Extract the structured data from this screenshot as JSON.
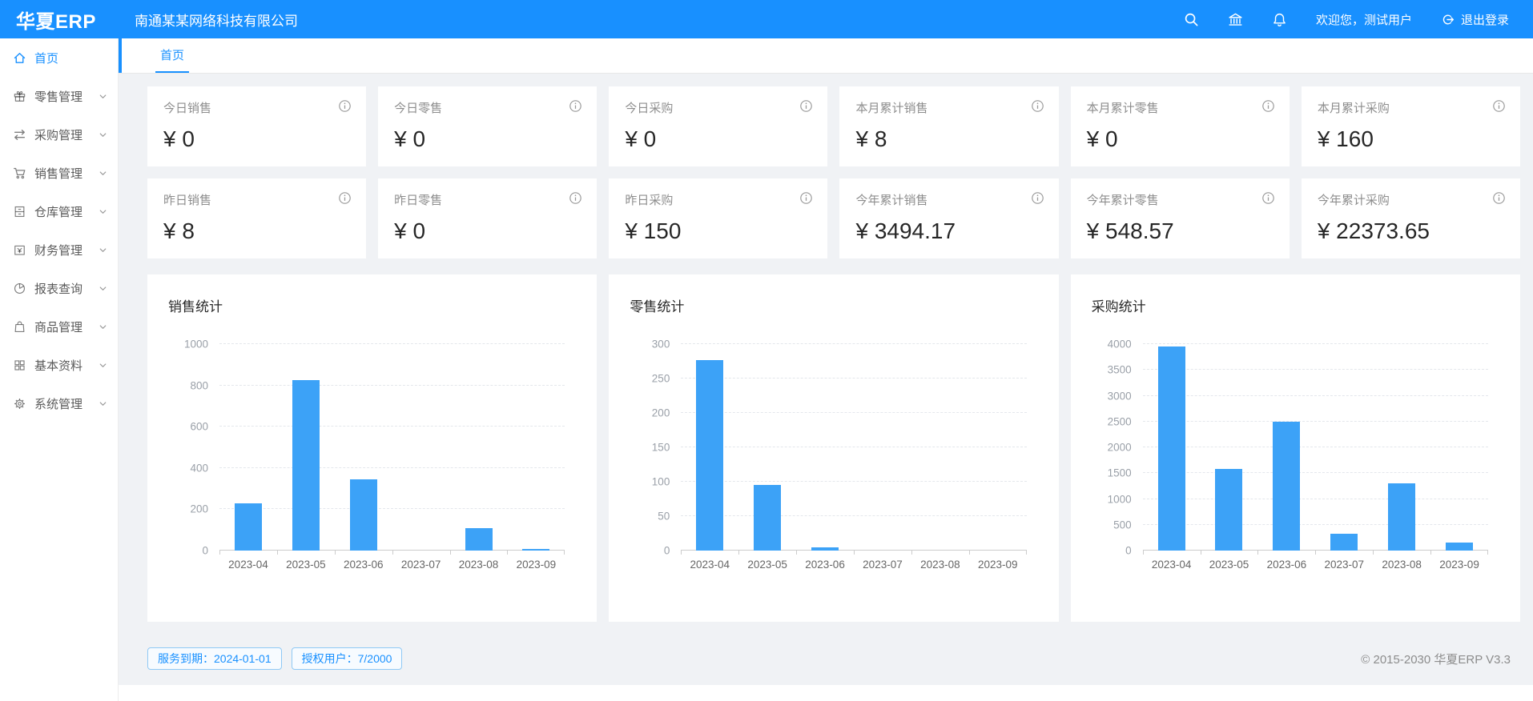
{
  "colors": {
    "primary": "#1890ff",
    "bar": "#3ca2f7",
    "page_bg": "#f0f2f5"
  },
  "header": {
    "logo": "华夏ERP",
    "company": "南通某某网络科技有限公司",
    "icons": [
      "search",
      "bank",
      "bell"
    ],
    "welcome": "欢迎您，测试用户",
    "logout_label": "退出登录"
  },
  "tabs": [
    {
      "label": "首页",
      "active": true
    }
  ],
  "sidebar": {
    "items": [
      {
        "label": "首页",
        "icon": "home",
        "active": true,
        "expandable": false
      },
      {
        "label": "零售管理",
        "icon": "gift",
        "active": false,
        "expandable": true
      },
      {
        "label": "采购管理",
        "icon": "swap",
        "active": false,
        "expandable": true
      },
      {
        "label": "销售管理",
        "icon": "cart",
        "active": false,
        "expandable": true
      },
      {
        "label": "仓库管理",
        "icon": "warehouse",
        "active": false,
        "expandable": true
      },
      {
        "label": "财务管理",
        "icon": "wallet",
        "active": false,
        "expandable": true
      },
      {
        "label": "报表查询",
        "icon": "pie",
        "active": false,
        "expandable": true
      },
      {
        "label": "商品管理",
        "icon": "bag",
        "active": false,
        "expandable": true
      },
      {
        "label": "基本资料",
        "icon": "grid",
        "active": false,
        "expandable": true
      },
      {
        "label": "系统管理",
        "icon": "gear",
        "active": false,
        "expandable": true
      }
    ]
  },
  "stats": {
    "rows": [
      [
        {
          "label": "今日销售",
          "value": "¥ 0"
        },
        {
          "label": "今日零售",
          "value": "¥ 0"
        },
        {
          "label": "今日采购",
          "value": "¥ 0"
        },
        {
          "label": "本月累计销售",
          "value": "¥ 8"
        },
        {
          "label": "本月累计零售",
          "value": "¥ 0"
        },
        {
          "label": "本月累计采购",
          "value": "¥ 160"
        }
      ],
      [
        {
          "label": "昨日销售",
          "value": "¥ 8"
        },
        {
          "label": "昨日零售",
          "value": "¥ 0"
        },
        {
          "label": "昨日采购",
          "value": "¥ 150"
        },
        {
          "label": "今年累计销售",
          "value": "¥ 3494.17"
        },
        {
          "label": "今年累计零售",
          "value": "¥ 548.57"
        },
        {
          "label": "今年累计采购",
          "value": "¥ 22373.65"
        }
      ]
    ]
  },
  "chart_data": [
    {
      "type": "bar",
      "title": "销售统计",
      "categories": [
        "2023-04",
        "2023-05",
        "2023-06",
        "2023-07",
        "2023-08",
        "2023-09"
      ],
      "values": [
        230,
        825,
        345,
        0,
        110,
        8
      ],
      "xlabel": "",
      "ylabel": "",
      "ylim": [
        0,
        1000
      ],
      "ystep": 200,
      "grid": "dashed-horizontal",
      "legend": "none",
      "bar_color": "#3ca2f7"
    },
    {
      "type": "bar",
      "title": "零售统计",
      "categories": [
        "2023-04",
        "2023-05",
        "2023-06",
        "2023-07",
        "2023-08",
        "2023-09"
      ],
      "values": [
        277,
        95,
        5,
        0,
        0,
        0
      ],
      "xlabel": "",
      "ylabel": "",
      "ylim": [
        0,
        300
      ],
      "ystep": 50,
      "grid": "dashed-horizontal",
      "legend": "none",
      "bar_color": "#3ca2f7"
    },
    {
      "type": "bar",
      "title": "采购统计",
      "categories": [
        "2023-04",
        "2023-05",
        "2023-06",
        "2023-07",
        "2023-08",
        "2023-09"
      ],
      "values": [
        3950,
        1580,
        2500,
        330,
        1300,
        160
      ],
      "xlabel": "",
      "ylabel": "",
      "ylim": [
        0,
        4000
      ],
      "ystep": 500,
      "grid": "dashed-horizontal",
      "legend": "none",
      "bar_color": "#3ca2f7"
    }
  ],
  "footer": {
    "badges": [
      "服务到期：2024-01-01",
      "授权用户：7/2000"
    ],
    "copyright": "© 2015-2030 华夏ERP V3.3"
  }
}
